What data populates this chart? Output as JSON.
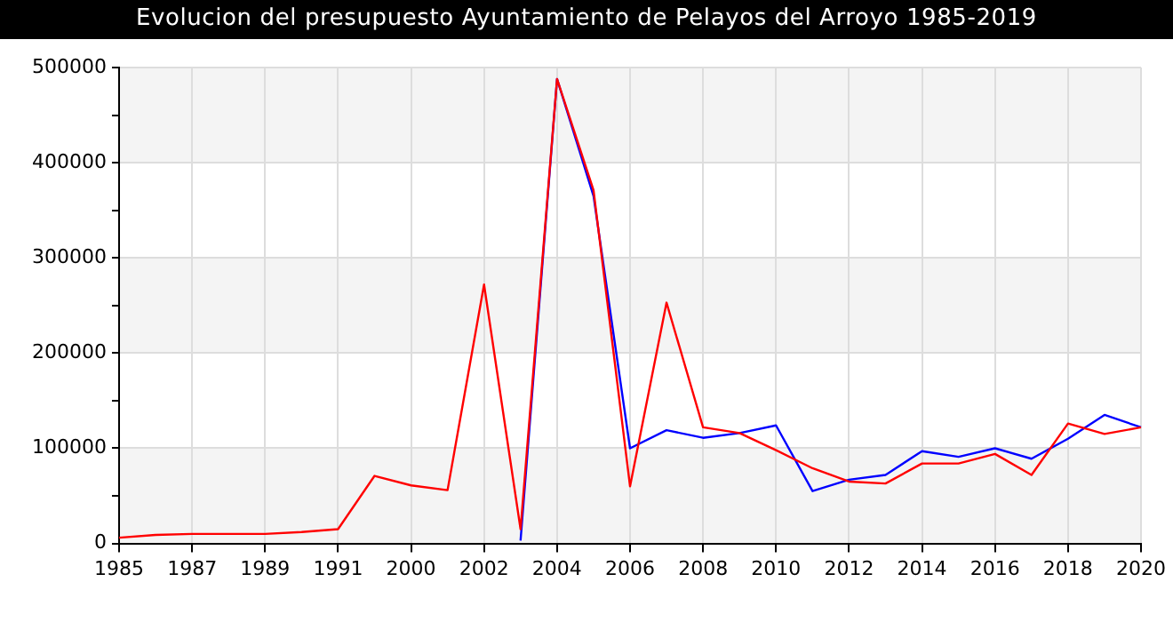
{
  "chart_data": {
    "type": "line",
    "title": "Evolucion del presupuesto Ayuntamiento de Pelayos del Arroyo 1985-2019",
    "categories": [
      "1985",
      null,
      "1987",
      null,
      "1989",
      null,
      "1991",
      null,
      "2000",
      null,
      "2002",
      null,
      "2004",
      null,
      "2006",
      null,
      "2008",
      null,
      "2010",
      null,
      "2012",
      null,
      "2014",
      null,
      "2016",
      null,
      "2018",
      null,
      "2020"
    ],
    "series": [
      {
        "color": "#0000ff",
        "values": [
          null,
          null,
          null,
          null,
          null,
          null,
          null,
          null,
          null,
          null,
          null,
          3000,
          488000,
          365000,
          100000,
          119000,
          111000,
          116000,
          124000,
          55000,
          67000,
          72000,
          97000,
          91000,
          100000,
          89000,
          110000,
          135000,
          122000
        ]
      },
      {
        "color": "#ff0000",
        "values": [
          6000,
          9000,
          10000,
          10000,
          10000,
          12000,
          15000,
          71000,
          61000,
          56000,
          272000,
          15000,
          488000,
          371000,
          60000,
          253000,
          122000,
          116000,
          98000,
          79000,
          65000,
          63000,
          84000,
          84000,
          94000,
          72000,
          126000,
          115000,
          122000
        ]
      }
    ],
    "ylim": [
      0,
      500000
    ],
    "yticks": [
      0,
      {
        "value": 50000,
        "label": null
      },
      100000,
      {
        "value": 150000,
        "label": null
      },
      200000,
      {
        "value": 250000,
        "label": null
      },
      300000,
      {
        "value": 350000,
        "label": null
      },
      400000,
      {
        "value": 450000,
        "label": null
      },
      500000
    ],
    "grid": true,
    "legend": false,
    "marker": "none",
    "line_style": "solid"
  }
}
